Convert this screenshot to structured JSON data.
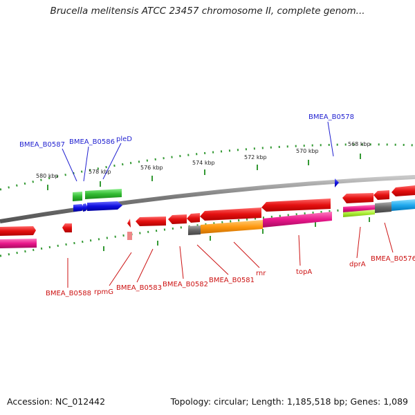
{
  "header": {
    "title": "Brucella melitensis ATCC 23457 chromosome II, complete genom..."
  },
  "footer": {
    "accession": "Accession: NC_012442",
    "summary": "Topology: circular; Length: 1,185,518 bp; Genes: 1,089"
  },
  "scale": {
    "ticks": [
      "580 kbp",
      "578 kbp",
      "576 kbp",
      "574 kbp",
      "572 kbp",
      "570 kbp",
      "568 kbp"
    ]
  },
  "genes": {
    "forward_labels": [
      "BMEA_B0587",
      "BMEA_B0586",
      "pleD",
      "BMEA_B0578"
    ],
    "reverse_labels": [
      "BMEA_B0588",
      "rpmG",
      "BMEA_B0583",
      "BMEA_B0582",
      "BMEA_B0581",
      "rnr",
      "topA",
      "dprA",
      "BMEA_B0576"
    ]
  },
  "colors": {
    "cds_forward": "#1010e0",
    "cds_reverse": "#e41010",
    "backbone": "#808080",
    "scale_dots": "#339933",
    "feature_green": "#33bb33",
    "feature_orange": "#ff9911",
    "feature_magenta": "#e8178a",
    "feature_cyan": "#22aaee",
    "feature_lime": "#aaee33",
    "feature_gray": "#666666",
    "feature_pink": "#ee8888"
  }
}
